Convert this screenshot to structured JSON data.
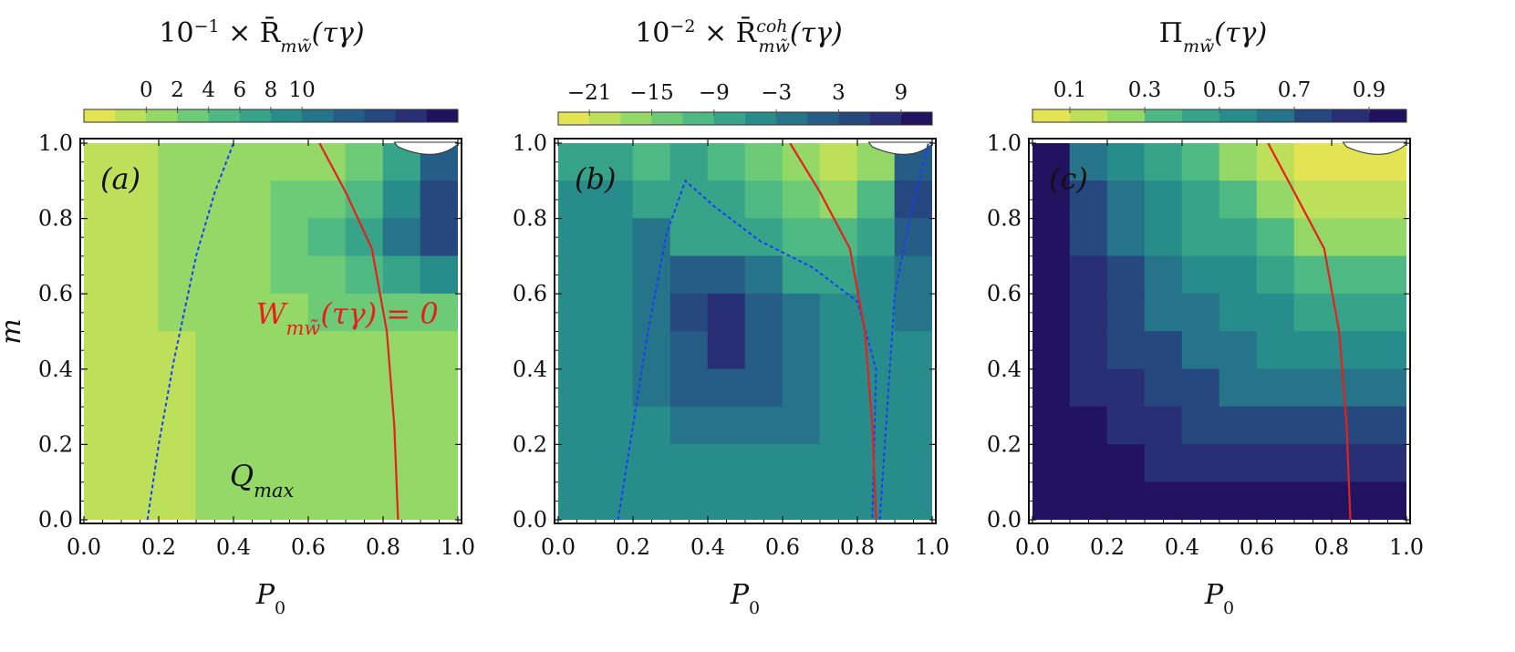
{
  "chart_data": [
    {
      "type": "heatmap",
      "panel": "(a)",
      "title_prefix": "10",
      "title_exp": "−1",
      "title_main": " × R̄",
      "title_sub": "mw̃",
      "title_sup": "",
      "title_suffix": "(τγ)",
      "xlabel": "P",
      "xlabel_sub": "0",
      "ylabel": "m",
      "xlim": [
        0,
        1
      ],
      "ylim": [
        0,
        1
      ],
      "x_ticks": [
        "0.0",
        "0.2",
        "0.4",
        "0.6",
        "0.8",
        "1.0"
      ],
      "y_ticks": [
        "0.0",
        "0.2",
        "0.4",
        "0.6",
        "0.8",
        "1.0"
      ],
      "colorbar_ticks": [
        "0",
        "2",
        "4",
        "6",
        "8",
        "10"
      ],
      "colorbar_levels": 12,
      "colorbar_tick_levels": [
        2,
        3,
        4,
        5,
        6,
        7
      ],
      "level_map": [
        [
          1,
          1,
          2,
          2,
          2,
          2,
          2,
          3,
          5,
          8
        ],
        [
          1,
          1,
          2,
          2,
          2,
          3,
          3,
          4,
          6,
          9
        ],
        [
          1,
          1,
          2,
          2,
          2,
          3,
          4,
          5,
          7,
          9
        ],
        [
          1,
          1,
          2,
          2,
          2,
          3,
          3,
          4,
          5,
          6
        ],
        [
          1,
          1,
          2,
          2,
          2,
          2,
          3,
          3,
          3,
          3
        ],
        [
          1,
          1,
          1,
          2,
          2,
          2,
          2,
          2,
          2,
          2
        ],
        [
          1,
          1,
          1,
          2,
          2,
          2,
          2,
          2,
          2,
          2
        ],
        [
          1,
          1,
          1,
          2,
          2,
          2,
          2,
          2,
          2,
          2
        ],
        [
          1,
          1,
          1,
          2,
          2,
          2,
          2,
          2,
          2,
          2
        ],
        [
          1,
          1,
          1,
          2,
          2,
          2,
          2,
          2,
          2,
          2
        ]
      ],
      "curves": [
        {
          "name": "blue-dashed",
          "color": "#1a3cff",
          "dashed": true,
          "points": [
            [
              0.17,
              0.0
            ],
            [
              0.2,
              0.2
            ],
            [
              0.24,
              0.42
            ],
            [
              0.3,
              0.7
            ],
            [
              0.35,
              0.87
            ],
            [
              0.4,
              1.0
            ]
          ]
        },
        {
          "name": "red-solid",
          "color": "#e8201c",
          "dashed": false,
          "points": [
            [
              0.84,
              0.0
            ],
            [
              0.83,
              0.25
            ],
            [
              0.81,
              0.5
            ],
            [
              0.77,
              0.72
            ],
            [
              0.7,
              0.87
            ],
            [
              0.63,
              1.0
            ]
          ]
        }
      ],
      "annotations": [
        {
          "name": "w-zero",
          "text": "W",
          "sub": "mw̃",
          "suffix": "(τγ) = 0",
          "color": "#e8201c",
          "x": 0.46,
          "y": 0.52
        },
        {
          "name": "q-max",
          "text": "Q",
          "sub": "max",
          "suffix": "",
          "color": "#111111",
          "x": 0.39,
          "y": 0.09
        }
      ]
    },
    {
      "type": "heatmap",
      "panel": "(b)",
      "title_prefix": "10",
      "title_exp": "−2",
      "title_main": " × R̄",
      "title_sub": "mw̃",
      "title_sup": "coh",
      "title_suffix": "(τγ)",
      "xlabel": "P",
      "xlabel_sub": "0",
      "ylabel": "",
      "xlim": [
        0,
        1
      ],
      "ylim": [
        0,
        1
      ],
      "x_ticks": [
        "0.0",
        "0.2",
        "0.4",
        "0.6",
        "0.8",
        "1.0"
      ],
      "y_ticks": [
        "0.0",
        "0.2",
        "0.4",
        "0.6",
        "0.8",
        "1.0"
      ],
      "colorbar_ticks": [
        "−21",
        "−15",
        "−9",
        "−3",
        "3",
        "9"
      ],
      "colorbar_levels": 12,
      "colorbar_tick_levels": [
        1,
        3,
        5,
        7,
        9,
        11
      ],
      "level_map": [
        [
          5,
          5,
          4,
          5,
          4,
          3,
          2,
          1,
          2,
          8
        ],
        [
          6,
          6,
          5,
          5,
          5,
          4,
          3,
          2,
          4,
          9
        ],
        [
          6,
          6,
          7,
          5,
          5,
          5,
          4,
          4,
          5,
          8
        ],
        [
          6,
          6,
          7,
          8,
          8,
          7,
          5,
          5,
          6,
          7
        ],
        [
          6,
          6,
          7,
          9,
          10,
          8,
          7,
          6,
          6,
          7
        ],
        [
          6,
          6,
          7,
          8,
          10,
          8,
          7,
          6,
          6,
          6
        ],
        [
          6,
          6,
          7,
          8,
          8,
          8,
          7,
          6,
          6,
          6
        ],
        [
          6,
          6,
          6,
          7,
          7,
          7,
          7,
          6,
          6,
          6
        ],
        [
          6,
          6,
          6,
          6,
          6,
          6,
          6,
          6,
          6,
          6
        ],
        [
          6,
          6,
          6,
          6,
          6,
          6,
          6,
          6,
          6,
          6
        ]
      ],
      "curves": [
        {
          "name": "blue-dashed-left",
          "color": "#1a3cff",
          "dashed": true,
          "points": [
            [
              0.16,
              0.0
            ],
            [
              0.2,
              0.25
            ],
            [
              0.24,
              0.5
            ],
            [
              0.29,
              0.76
            ],
            [
              0.34,
              0.9
            ],
            [
              0.42,
              0.83
            ],
            [
              0.54,
              0.74
            ],
            [
              0.68,
              0.67
            ],
            [
              0.8,
              0.58
            ],
            [
              0.85,
              0.4
            ],
            [
              0.84,
              0.0
            ]
          ]
        },
        {
          "name": "blue-dashed-right",
          "color": "#1a3cff",
          "dashed": true,
          "points": [
            [
              0.86,
              0.0
            ],
            [
              0.88,
              0.3
            ],
            [
              0.9,
              0.6
            ],
            [
              0.94,
              0.8
            ],
            [
              0.99,
              1.0
            ]
          ]
        },
        {
          "name": "red-solid",
          "color": "#e8201c",
          "dashed": false,
          "points": [
            [
              0.85,
              0.0
            ],
            [
              0.84,
              0.25
            ],
            [
              0.82,
              0.5
            ],
            [
              0.78,
              0.72
            ],
            [
              0.7,
              0.87
            ],
            [
              0.62,
              1.0
            ]
          ]
        }
      ],
      "annotations": []
    },
    {
      "type": "heatmap",
      "panel": "(c)",
      "title_prefix": "",
      "title_exp": "",
      "title_main": "Π",
      "title_sub": "mw̃",
      "title_sup": "",
      "title_suffix": "(τγ)",
      "xlabel": "P",
      "xlabel_sub": "0",
      "ylabel": "",
      "xlim": [
        0,
        1
      ],
      "ylim": [
        0,
        1
      ],
      "x_ticks": [
        "0.0",
        "0.2",
        "0.4",
        "0.6",
        "0.8",
        "1.0"
      ],
      "y_ticks": [
        "0.0",
        "0.2",
        "0.4",
        "0.6",
        "0.8",
        "1.0"
      ],
      "colorbar_ticks": [
        "0.1",
        "0.3",
        "0.5",
        "0.7",
        "0.9"
      ],
      "colorbar_levels": 10,
      "colorbar_tick_levels": [
        1,
        3,
        5,
        7,
        9
      ],
      "level_map": [
        [
          9,
          6,
          5,
          4,
          3,
          2,
          1,
          0,
          0,
          0
        ],
        [
          9,
          7,
          6,
          5,
          4,
          3,
          2,
          1,
          1,
          1
        ],
        [
          9,
          7,
          6,
          5,
          4,
          4,
          3,
          2,
          2,
          2
        ],
        [
          9,
          8,
          7,
          6,
          5,
          5,
          4,
          3,
          3,
          3
        ],
        [
          9,
          8,
          7,
          6,
          6,
          5,
          5,
          4,
          4,
          4
        ],
        [
          9,
          8,
          7,
          7,
          6,
          6,
          5,
          5,
          5,
          5
        ],
        [
          9,
          8,
          8,
          7,
          7,
          6,
          6,
          6,
          6,
          6
        ],
        [
          9,
          9,
          8,
          8,
          7,
          7,
          7,
          7,
          7,
          7
        ],
        [
          9,
          9,
          9,
          8,
          8,
          8,
          8,
          8,
          8,
          8
        ],
        [
          9,
          9,
          9,
          9,
          9,
          9,
          9,
          9,
          9,
          9
        ]
      ],
      "curves": [
        {
          "name": "red-solid",
          "color": "#e8201c",
          "dashed": false,
          "points": [
            [
              0.85,
              0.0
            ],
            [
              0.84,
              0.25
            ],
            [
              0.82,
              0.5
            ],
            [
              0.78,
              0.72
            ],
            [
              0.7,
              0.87
            ],
            [
              0.63,
              1.0
            ]
          ]
        }
      ],
      "annotations": []
    }
  ],
  "colors": {
    "palette": [
      "#e3e354",
      "#bddf5a",
      "#94d868",
      "#6dcb78",
      "#4fb984",
      "#37a48a",
      "#288c8b",
      "#257489",
      "#255d86",
      "#27477f",
      "#292f75",
      "#21135f"
    ],
    "curve_red": "#e8201c",
    "curve_blue": "#1a3cff"
  }
}
